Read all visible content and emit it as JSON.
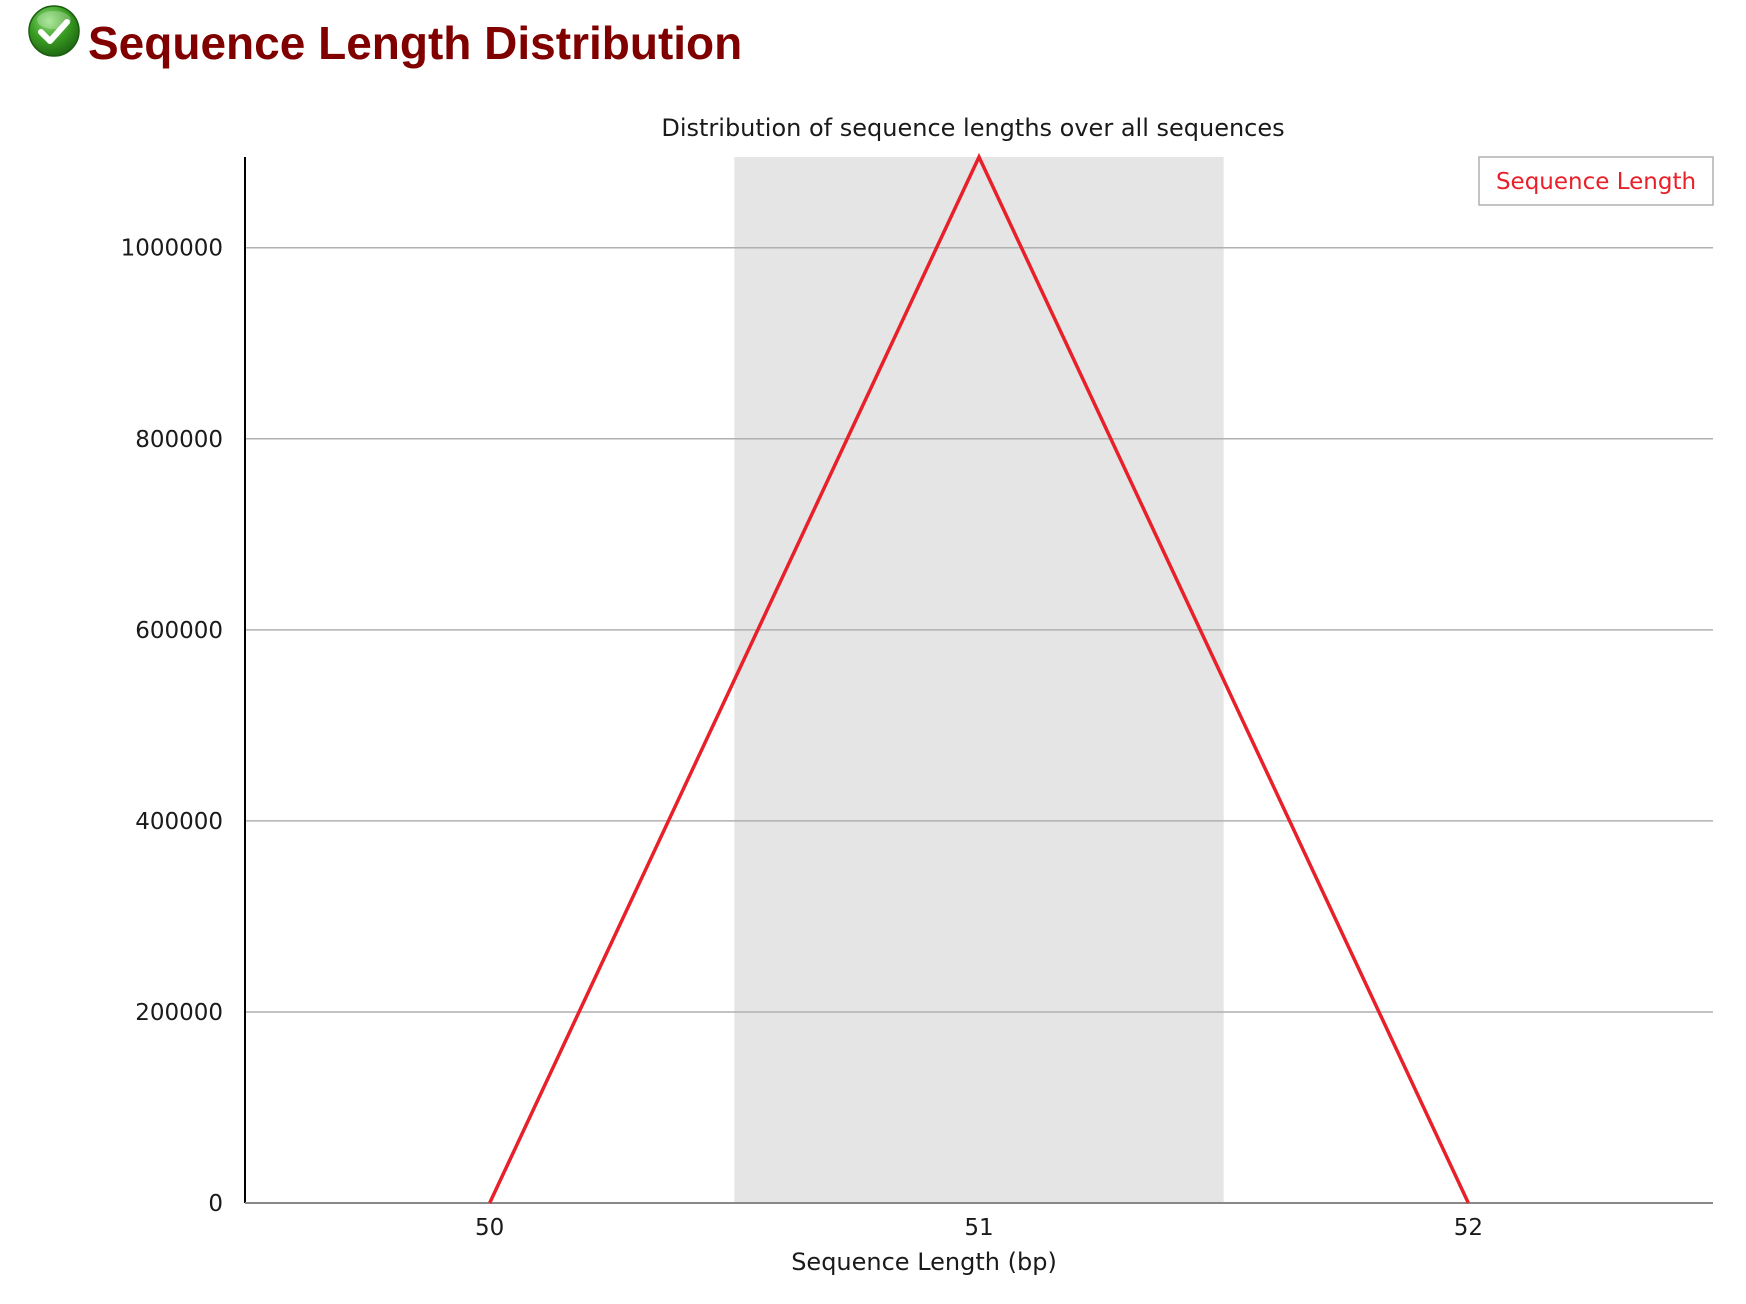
{
  "header": {
    "title": "Sequence Length Distribution",
    "status_icon": "check-circle-icon",
    "status_color": "#3a9d23"
  },
  "chart_data": {
    "type": "line",
    "title": "Distribution of sequence lengths over all sequences",
    "xlabel": "Sequence Length (bp)",
    "ylabel": "",
    "categories": [
      "50",
      "51",
      "52"
    ],
    "x": [
      50,
      51,
      52
    ],
    "series": [
      {
        "name": "Sequence Length",
        "values": [
          0,
          1095000,
          0
        ],
        "color": "#e8202a"
      }
    ],
    "ylim": [
      0,
      1095000
    ],
    "yticks": [
      0,
      200000,
      400000,
      600000,
      800000,
      1000000
    ],
    "ytick_labels": [
      "0",
      "200000",
      "400000",
      "600000",
      "800000",
      "1000000"
    ],
    "grid": true,
    "legend": "top-right",
    "highlight_band": {
      "category": "51",
      "color": "#e5e5e5"
    },
    "colors": {
      "line": "#e8202a",
      "grid": "#b0b0b0",
      "band": "#e5e5e5",
      "axis": "#000000"
    }
  }
}
